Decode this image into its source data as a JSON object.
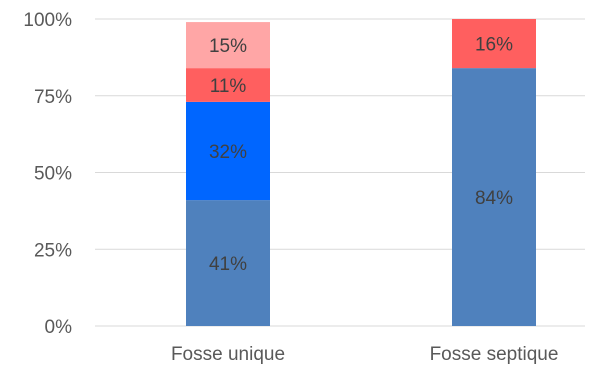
{
  "chart_data": {
    "type": "bar",
    "stacked": true,
    "percent_stacked": true,
    "categories": [
      "Fosse unique",
      "Fosse septique"
    ],
    "series": [
      {
        "color": "#4f81bd",
        "values": [
          41,
          84
        ],
        "labels": [
          "41%",
          "84%"
        ]
      },
      {
        "color": "#0066ff",
        "values": [
          32,
          0
        ],
        "labels": [
          "32%",
          ""
        ]
      },
      {
        "color": "#ff5f5f",
        "values": [
          11,
          16
        ],
        "labels": [
          "11%",
          "16%"
        ]
      },
      {
        "color": "#ffa6a6",
        "values": [
          15,
          0
        ],
        "labels": [
          "15%",
          ""
        ]
      }
    ],
    "yticks": [
      "0%",
      "25%",
      "50%",
      "75%",
      "100%"
    ],
    "ylim": [
      0,
      100
    ],
    "grid": true,
    "title": "",
    "xlabel": "",
    "ylabel": ""
  }
}
